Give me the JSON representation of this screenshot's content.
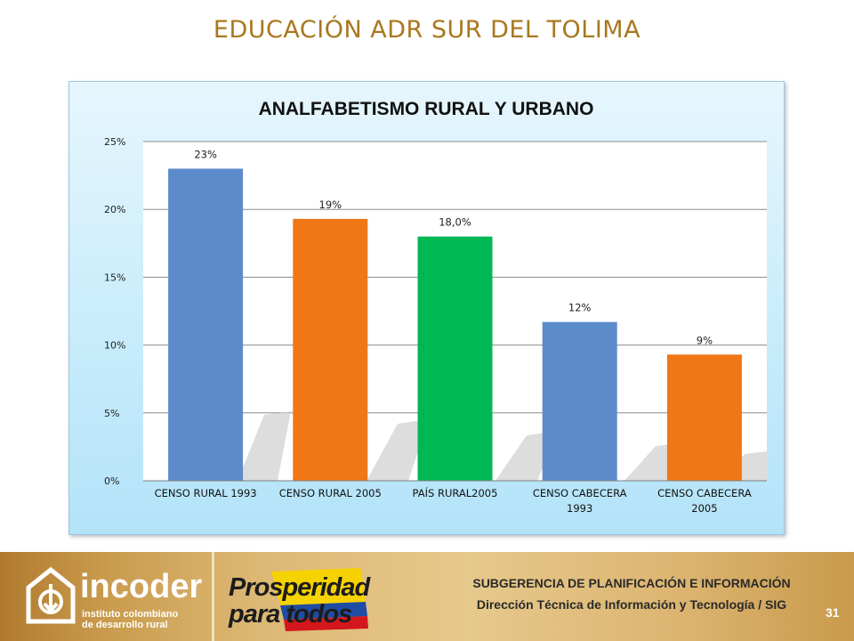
{
  "slide": {
    "title": "EDUCACIÓN ADR SUR DEL TOLIMA",
    "page_number": "31"
  },
  "footer": {
    "incoder_name": "incoder",
    "incoder_sub1": "instituto colombiano",
    "incoder_sub2": "de desarrollo rural",
    "prosperidad_line1": "Prosperidad",
    "prosperidad_line2": "para todos",
    "department": "SUBGERENCIA DE PLANIFICACIÓN E INFORMACIÓN",
    "direction": "Dirección Técnica de Información y Tecnología / SIG"
  },
  "colors": {
    "title": "#a8781e",
    "blue": "#5b8bcb",
    "orange": "#f07716",
    "green": "#00b853"
  },
  "chart_data": {
    "type": "bar",
    "title": "ANALFABETISMO RURAL Y URBANO",
    "xlabel": "",
    "ylabel": "",
    "ylim": [
      0,
      25
    ],
    "yticks": [
      0,
      5,
      10,
      15,
      20,
      25
    ],
    "ytick_labels": [
      "0%",
      "5%",
      "10%",
      "15%",
      "20%",
      "25%"
    ],
    "grid": true,
    "categories": [
      [
        "CENSO RURAL 1993"
      ],
      [
        "CENSO RURAL 2005"
      ],
      [
        "PAÍS RURAL2005"
      ],
      [
        "CENSO CABECERA",
        "1993"
      ],
      [
        "CENSO CABECERA",
        "2005"
      ]
    ],
    "values": [
      23,
      19.3,
      18.0,
      11.7,
      9.3
    ],
    "data_labels": [
      "23%",
      "19%",
      "18,0%",
      "12%",
      "9%"
    ],
    "bar_colors": [
      "#5b8bcb",
      "#f07716",
      "#00b853",
      "#5b8bcb",
      "#f07716"
    ]
  }
}
